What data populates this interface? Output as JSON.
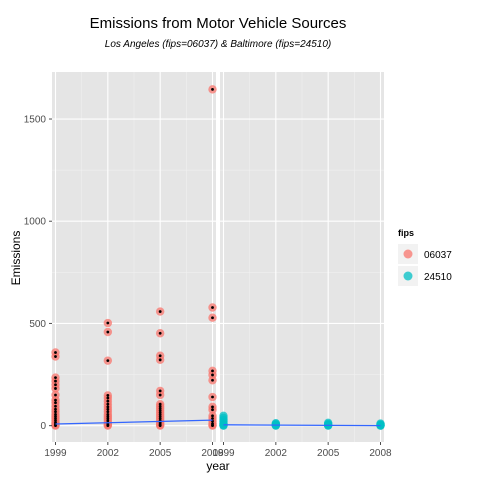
{
  "chart_data": {
    "type": "scatter",
    "title": "Emissions from Motor Vehicle Sources",
    "subtitle": "Los Angeles (fips=06037) & Baltimore (fips=24510)",
    "xlabel": "year",
    "ylabel": "Emissions",
    "x_ticks": [
      1999,
      2002,
      2005,
      2008
    ],
    "y_ticks": [
      0,
      500,
      1000,
      1500
    ],
    "xlim": [
      1998.8,
      2008.2
    ],
    "ylim": [
      -80,
      1730
    ],
    "grid": true,
    "legend": {
      "title": "fips",
      "placement": "right",
      "entries": [
        "06037",
        "24510"
      ]
    },
    "facets": [
      "06037",
      "24510"
    ],
    "series": [
      {
        "name": "06037",
        "color": "#f8766d",
        "points": [
          {
            "x": 1999,
            "y": 358
          },
          {
            "x": 1999,
            "y": 338
          },
          {
            "x": 1999,
            "y": 235
          },
          {
            "x": 1999,
            "y": 218
          },
          {
            "x": 1999,
            "y": 200
          },
          {
            "x": 1999,
            "y": 182
          },
          {
            "x": 1999,
            "y": 150
          },
          {
            "x": 1999,
            "y": 125
          },
          {
            "x": 1999,
            "y": 112
          },
          {
            "x": 1999,
            "y": 95
          },
          {
            "x": 1999,
            "y": 80
          },
          {
            "x": 1999,
            "y": 68
          },
          {
            "x": 1999,
            "y": 55
          },
          {
            "x": 1999,
            "y": 45
          },
          {
            "x": 1999,
            "y": 35
          },
          {
            "x": 1999,
            "y": 25
          },
          {
            "x": 1999,
            "y": 15
          },
          {
            "x": 1999,
            "y": 8
          },
          {
            "x": 1999,
            "y": 3
          },
          {
            "x": 1999,
            "y": 0
          },
          {
            "x": 2002,
            "y": 502
          },
          {
            "x": 2002,
            "y": 458
          },
          {
            "x": 2002,
            "y": 318
          },
          {
            "x": 2002,
            "y": 148
          },
          {
            "x": 2002,
            "y": 135
          },
          {
            "x": 2002,
            "y": 120
          },
          {
            "x": 2002,
            "y": 105
          },
          {
            "x": 2002,
            "y": 92
          },
          {
            "x": 2002,
            "y": 80
          },
          {
            "x": 2002,
            "y": 68
          },
          {
            "x": 2002,
            "y": 55
          },
          {
            "x": 2002,
            "y": 45
          },
          {
            "x": 2002,
            "y": 35
          },
          {
            "x": 2002,
            "y": 25
          },
          {
            "x": 2002,
            "y": 15
          },
          {
            "x": 2002,
            "y": 8
          },
          {
            "x": 2002,
            "y": 3
          },
          {
            "x": 2002,
            "y": 0
          },
          {
            "x": 2005,
            "y": 558
          },
          {
            "x": 2005,
            "y": 452
          },
          {
            "x": 2005,
            "y": 342
          },
          {
            "x": 2005,
            "y": 322
          },
          {
            "x": 2005,
            "y": 170
          },
          {
            "x": 2005,
            "y": 150
          },
          {
            "x": 2005,
            "y": 105
          },
          {
            "x": 2005,
            "y": 95
          },
          {
            "x": 2005,
            "y": 85
          },
          {
            "x": 2005,
            "y": 75
          },
          {
            "x": 2005,
            "y": 65
          },
          {
            "x": 2005,
            "y": 55
          },
          {
            "x": 2005,
            "y": 45
          },
          {
            "x": 2005,
            "y": 35
          },
          {
            "x": 2005,
            "y": 25
          },
          {
            "x": 2005,
            "y": 15
          },
          {
            "x": 2005,
            "y": 8
          },
          {
            "x": 2005,
            "y": 3
          },
          {
            "x": 2005,
            "y": 0
          },
          {
            "x": 2008,
            "y": 1645
          },
          {
            "x": 2008,
            "y": 578
          },
          {
            "x": 2008,
            "y": 528
          },
          {
            "x": 2008,
            "y": 268
          },
          {
            "x": 2008,
            "y": 248
          },
          {
            "x": 2008,
            "y": 222
          },
          {
            "x": 2008,
            "y": 140
          },
          {
            "x": 2008,
            "y": 92
          },
          {
            "x": 2008,
            "y": 78
          },
          {
            "x": 2008,
            "y": 48
          },
          {
            "x": 2008,
            "y": 35
          },
          {
            "x": 2008,
            "y": 22
          },
          {
            "x": 2008,
            "y": 10
          },
          {
            "x": 2008,
            "y": 3
          },
          {
            "x": 2008,
            "y": 0
          }
        ],
        "trend": [
          {
            "x": 1999,
            "y": 8
          },
          {
            "x": 2008,
            "y": 27
          }
        ]
      },
      {
        "name": "24510",
        "color": "#00bfc4",
        "points": [
          {
            "x": 1999,
            "y": 48
          },
          {
            "x": 1999,
            "y": 38
          },
          {
            "x": 1999,
            "y": 28
          },
          {
            "x": 1999,
            "y": 20
          },
          {
            "x": 1999,
            "y": 12
          },
          {
            "x": 1999,
            "y": 6
          },
          {
            "x": 1999,
            "y": 2
          },
          {
            "x": 1999,
            "y": 0
          },
          {
            "x": 2002,
            "y": 12
          },
          {
            "x": 2002,
            "y": 8
          },
          {
            "x": 2002,
            "y": 4
          },
          {
            "x": 2002,
            "y": 2
          },
          {
            "x": 2002,
            "y": 0
          },
          {
            "x": 2005,
            "y": 14
          },
          {
            "x": 2005,
            "y": 8
          },
          {
            "x": 2005,
            "y": 4
          },
          {
            "x": 2005,
            "y": 2
          },
          {
            "x": 2005,
            "y": 0
          },
          {
            "x": 2008,
            "y": 10
          },
          {
            "x": 2008,
            "y": 6
          },
          {
            "x": 2008,
            "y": 3
          },
          {
            "x": 2008,
            "y": 1
          },
          {
            "x": 2008,
            "y": 0
          }
        ],
        "trend": [
          {
            "x": 1999,
            "y": 4
          },
          {
            "x": 2008,
            "y": 0
          }
        ]
      }
    ]
  },
  "colors": {
    "panel": "#e5e5e5",
    "trend_line": "#3366ff",
    "point_dot": "#000000"
  }
}
